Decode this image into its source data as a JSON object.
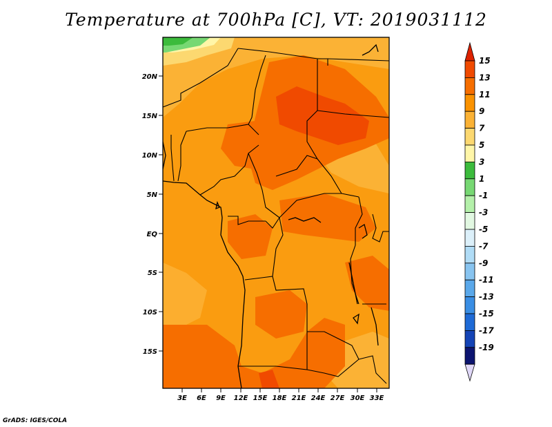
{
  "title": "Temperature at 700hPa [C], VT: 2019031112",
  "credit": "GrADS: IGES/COLA",
  "map": {
    "lat_labels": [
      "20N",
      "15N",
      "10N",
      "5N",
      "EQ",
      "5S",
      "10S",
      "15S"
    ],
    "lon_labels": [
      "3E",
      "6E",
      "9E",
      "12E",
      "15E",
      "18E",
      "21E",
      "24E",
      "27E",
      "30E",
      "33E"
    ]
  },
  "legend": {
    "labels": [
      "15",
      "13",
      "11",
      "9",
      "7",
      "5",
      "3",
      "1",
      "-1",
      "-3",
      "-5",
      "-7",
      "-9",
      "-11",
      "-13",
      "-15",
      "-17",
      "-19"
    ],
    "colors": [
      "#dd2200",
      "#f04a00",
      "#f66e00",
      "#fa9200",
      "#fbb235",
      "#fcd870",
      "#fff6a8",
      "#3cbb3c",
      "#77d873",
      "#b4f0aa",
      "#e2f8e2",
      "#dcf0fa",
      "#b0dcf6",
      "#88c4f0",
      "#5aa8ea",
      "#3a8ee4",
      "#1e6ad6",
      "#1444b6",
      "#0c1470",
      "#e0d8f8"
    ]
  }
}
